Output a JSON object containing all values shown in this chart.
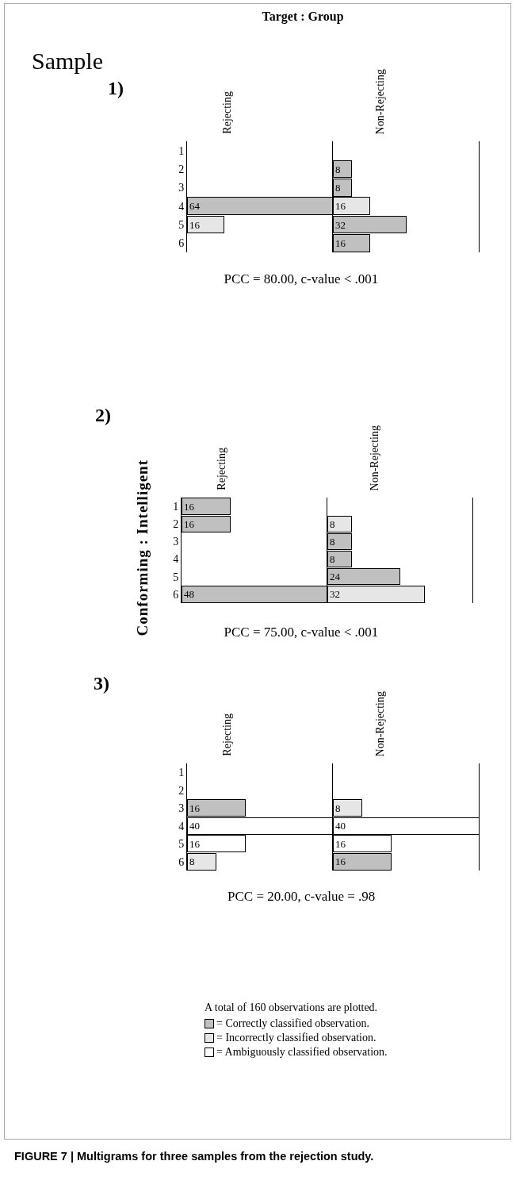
{
  "chart_data": [
    {
      "type": "bar",
      "orientation": "horizontal",
      "stacked": true,
      "title": "Rejecting",
      "categories": [
        "1",
        "2",
        "3",
        "4",
        "5",
        "6"
      ],
      "tick_labels": "y",
      "data_labels": true,
      "grid": false,
      "annotations": [
        "Target : Group",
        "Sample",
        "1)",
        "PCC = 80.00, c-value < .001"
      ],
      "series": [
        {
          "color": "#c0c0c0",
          "values": [
            null,
            null,
            null,
            64,
            null,
            null
          ]
        },
        {
          "color": "#e6e6e6",
          "values": [
            null,
            null,
            null,
            null,
            16,
            null
          ]
        },
        {
          "color": "#ffffff",
          "values": [
            null,
            null,
            null,
            null,
            null,
            null
          ]
        }
      ]
    },
    {
      "type": "bar",
      "orientation": "horizontal",
      "stacked": true,
      "title": "Non-Rejecting",
      "categories": [
        "1",
        "2",
        "3",
        "4",
        "5",
        "6"
      ],
      "tick_labels": false,
      "data_labels": true,
      "grid": false,
      "series": [
        {
          "color": "#c0c0c0",
          "values": [
            null,
            8,
            8,
            null,
            32,
            16
          ]
        },
        {
          "color": "#e6e6e6",
          "values": [
            null,
            null,
            null,
            16,
            null,
            null
          ]
        },
        {
          "color": "#ffffff",
          "values": [
            null,
            null,
            null,
            null,
            null,
            null
          ]
        }
      ]
    },
    {
      "type": "bar",
      "orientation": "horizontal",
      "stacked": true,
      "title": "Rejecting",
      "ylabel": "Conforming : Intelligent",
      "categories": [
        "1",
        "2",
        "3",
        "4",
        "5",
        "6"
      ],
      "tick_labels": "y",
      "data_labels": true,
      "grid": false,
      "annotations": [
        "2)",
        "PCC = 75.00, c-value < .001"
      ],
      "series": [
        {
          "color": "#c0c0c0",
          "values": [
            16,
            16,
            null,
            null,
            null,
            48
          ]
        },
        {
          "color": "#e6e6e6",
          "values": [
            null,
            null,
            null,
            null,
            null,
            null
          ]
        },
        {
          "color": "#ffffff",
          "values": [
            null,
            null,
            null,
            null,
            null,
            null
          ]
        }
      ]
    },
    {
      "type": "bar",
      "orientation": "horizontal",
      "stacked": true,
      "title": "Non-Rejecting",
      "categories": [
        "1",
        "2",
        "3",
        "4",
        "5",
        "6"
      ],
      "tick_labels": false,
      "data_labels": true,
      "grid": false,
      "series": [
        {
          "color": "#c0c0c0",
          "values": [
            null,
            null,
            8,
            8,
            24,
            null
          ]
        },
        {
          "color": "#e6e6e6",
          "values": [
            null,
            8,
            null,
            null,
            null,
            32
          ]
        },
        {
          "color": "#ffffff",
          "values": [
            null,
            null,
            null,
            null,
            null,
            null
          ]
        }
      ]
    },
    {
      "type": "bar",
      "orientation": "horizontal",
      "stacked": true,
      "title": "Rejecting",
      "categories": [
        "1",
        "2",
        "3",
        "4",
        "5",
        "6"
      ],
      "tick_labels": "y",
      "data_labels": true,
      "grid": false,
      "legend": "bottom",
      "annotations": [
        "3)",
        "PCC = 20.00, c-value = .98",
        "A total of 160 observations are plotted.",
        "FIGURE 7 | Multigrams for three samples from the rejection study."
      ],
      "series": [
        {
          "name": "= Correctly classified observation.",
          "color": "#c0c0c0",
          "values": [
            null,
            null,
            16,
            null,
            null,
            null
          ]
        },
        {
          "name": "= Incorrectly classified observation.",
          "color": "#e6e6e6",
          "values": [
            null,
            null,
            null,
            null,
            null,
            8
          ]
        },
        {
          "name": "= Ambiguously classified observation.",
          "color": "#ffffff",
          "values": [
            null,
            null,
            null,
            40,
            16,
            null
          ]
        }
      ]
    },
    {
      "type": "bar",
      "orientation": "horizontal",
      "stacked": true,
      "title": "Non-Rejecting",
      "categories": [
        "1",
        "2",
        "3",
        "4",
        "5",
        "6"
      ],
      "tick_labels": false,
      "data_labels": true,
      "grid": false,
      "series": [
        {
          "color": "#c0c0c0",
          "values": [
            null,
            null,
            null,
            null,
            null,
            16
          ]
        },
        {
          "color": "#e6e6e6",
          "values": [
            null,
            null,
            8,
            null,
            null,
            null
          ]
        },
        {
          "color": "#ffffff",
          "values": [
            null,
            null,
            null,
            40,
            16,
            null
          ]
        }
      ]
    }
  ]
}
